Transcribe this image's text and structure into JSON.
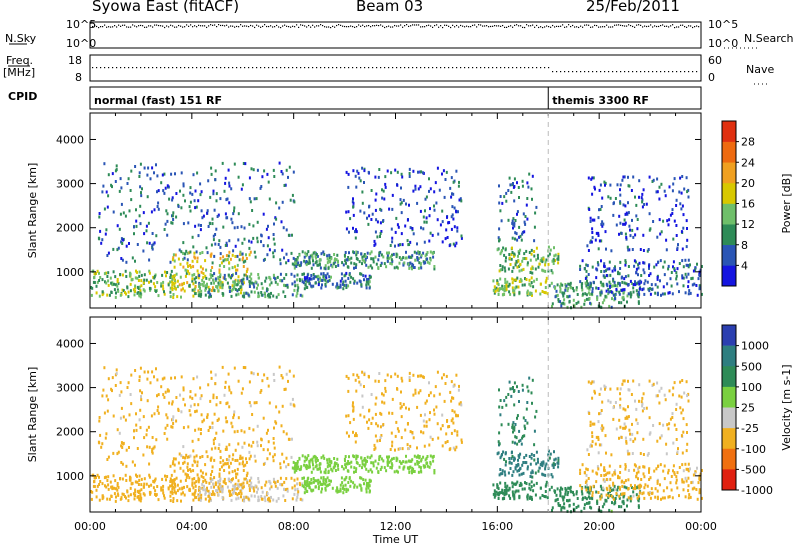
{
  "header": {
    "title": "Syowa East (fitACF)",
    "beam": "Beam 03",
    "date": "25/Feb/2011"
  },
  "noise_panel": {
    "left_label": "N.Sky",
    "right_label": "N.Search",
    "ticks_left": [
      "10^5",
      "10^0"
    ],
    "ticks_right": [
      "10^5",
      "10^0"
    ]
  },
  "freq_panel": {
    "left_label_top": "Freq.",
    "left_label_bottom": "[MHz]",
    "right_label": "Nave",
    "ticks_left": [
      "18",
      "8"
    ],
    "ticks_right": [
      "60",
      "0"
    ]
  },
  "cpid_panel": {
    "label": "CPID",
    "modes": [
      {
        "label": "normal (fast) 151 RF",
        "start_hour": 0
      },
      {
        "label": "themis 3300 RF",
        "start_hour": 18
      }
    ]
  },
  "chart_data": [
    {
      "type": "heatmap",
      "name": "power",
      "ylabel": "Slant Range [km]",
      "xlabel": "",
      "x_range_hours": [
        0,
        24
      ],
      "ylim": [
        180,
        4600
      ],
      "yticks": [
        "1000",
        "2000",
        "3000",
        "4000"
      ],
      "colorbar": {
        "label": "Power [dB]",
        "range": [
          0,
          32
        ],
        "ticks": [
          "4",
          "8",
          "12",
          "16",
          "20",
          "24",
          "28"
        ],
        "colors": [
          "#1515e0",
          "#2a55b5",
          "#2e8b57",
          "#6fbf6a",
          "#d8c800",
          "#f0a020",
          "#ee6a10",
          "#e03010"
        ]
      },
      "regions": [
        {
          "t0": 0.0,
          "t1": 4.4,
          "r0": 450,
          "r1": 1050,
          "value": 14
        },
        {
          "t0": 3.2,
          "t1": 6.3,
          "r0": 550,
          "r1": 1500,
          "value": 18
        },
        {
          "t0": 4.2,
          "t1": 8.3,
          "r0": 450,
          "r1": 1000,
          "value": 11
        },
        {
          "t0": 0.3,
          "t1": 8.0,
          "r0": 1200,
          "r1": 3500,
          "value": 7
        },
        {
          "t0": 7.9,
          "t1": 13.5,
          "r0": 1100,
          "r1": 1500,
          "value": 10
        },
        {
          "t0": 8.3,
          "t1": 11.0,
          "r0": 650,
          "r1": 1000,
          "value": 8
        },
        {
          "t0": 10.0,
          "t1": 14.6,
          "r0": 1600,
          "r1": 3400,
          "value": 5
        },
        {
          "t0": 15.9,
          "t1": 18.4,
          "r0": 1000,
          "r1": 1600,
          "value": 13
        },
        {
          "t0": 15.8,
          "t1": 18.0,
          "r0": 500,
          "r1": 900,
          "value": 15
        },
        {
          "t0": 16.0,
          "t1": 17.5,
          "r0": 1700,
          "r1": 3300,
          "value": 7
        },
        {
          "t0": 18.0,
          "t1": 21.6,
          "r0": 220,
          "r1": 800,
          "value": 11
        },
        {
          "t0": 19.2,
          "t1": 24.0,
          "r0": 500,
          "r1": 1300,
          "value": 6
        },
        {
          "t0": 19.5,
          "t1": 23.5,
          "r0": 1500,
          "r1": 3200,
          "value": 5
        }
      ]
    },
    {
      "type": "heatmap",
      "name": "velocity",
      "ylabel": "Slant Range [km]",
      "xlabel": "Time UT",
      "x_range_hours": [
        0,
        24
      ],
      "xticks": [
        "00:00",
        "04:00",
        "08:00",
        "12:00",
        "16:00",
        "20:00",
        "00:00"
      ],
      "ylim": [
        180,
        4600
      ],
      "yticks": [
        "1000",
        "2000",
        "3000",
        "4000"
      ],
      "colorbar": {
        "label": "Velocity [m s-1]",
        "ticks": [
          "1000",
          "500",
          "100",
          "25",
          "-25",
          "-100",
          "-500",
          "-1000"
        ],
        "colors": [
          "#2b3fb0",
          "#2e7e80",
          "#2e8b57",
          "#7ad040",
          "#c8c8c8",
          "#f0b020",
          "#f07010",
          "#e02010"
        ]
      },
      "regions": [
        {
          "t0": 0.0,
          "t1": 4.4,
          "r0": 450,
          "r1": 1050,
          "value": -220
        },
        {
          "t0": 3.2,
          "t1": 6.3,
          "r0": 550,
          "r1": 1500,
          "value": -300
        },
        {
          "t0": 4.2,
          "t1": 8.3,
          "r0": 450,
          "r1": 1000,
          "value": -90
        },
        {
          "t0": 0.3,
          "t1": 8.0,
          "r0": 1200,
          "r1": 3500,
          "value": -150
        },
        {
          "t0": 7.9,
          "t1": 13.5,
          "r0": 1100,
          "r1": 1500,
          "value": 0
        },
        {
          "t0": 8.3,
          "t1": 11.0,
          "r0": 650,
          "r1": 1000,
          "value": 5
        },
        {
          "t0": 10.0,
          "t1": 14.6,
          "r0": 1600,
          "r1": 3400,
          "value": -150
        },
        {
          "t0": 15.9,
          "t1": 18.4,
          "r0": 1000,
          "r1": 1600,
          "value": 150
        },
        {
          "t0": 15.8,
          "t1": 18.0,
          "r0": 500,
          "r1": 900,
          "value": 60
        },
        {
          "t0": 16.0,
          "t1": 17.5,
          "r0": 1700,
          "r1": 3300,
          "value": 80
        },
        {
          "t0": 18.0,
          "t1": 21.6,
          "r0": 220,
          "r1": 800,
          "value": 55
        },
        {
          "t0": 19.2,
          "t1": 24.0,
          "r0": 500,
          "r1": 1300,
          "value": -150
        },
        {
          "t0": 19.5,
          "t1": 23.5,
          "r0": 1500,
          "r1": 3200,
          "value": -120
        }
      ]
    }
  ]
}
